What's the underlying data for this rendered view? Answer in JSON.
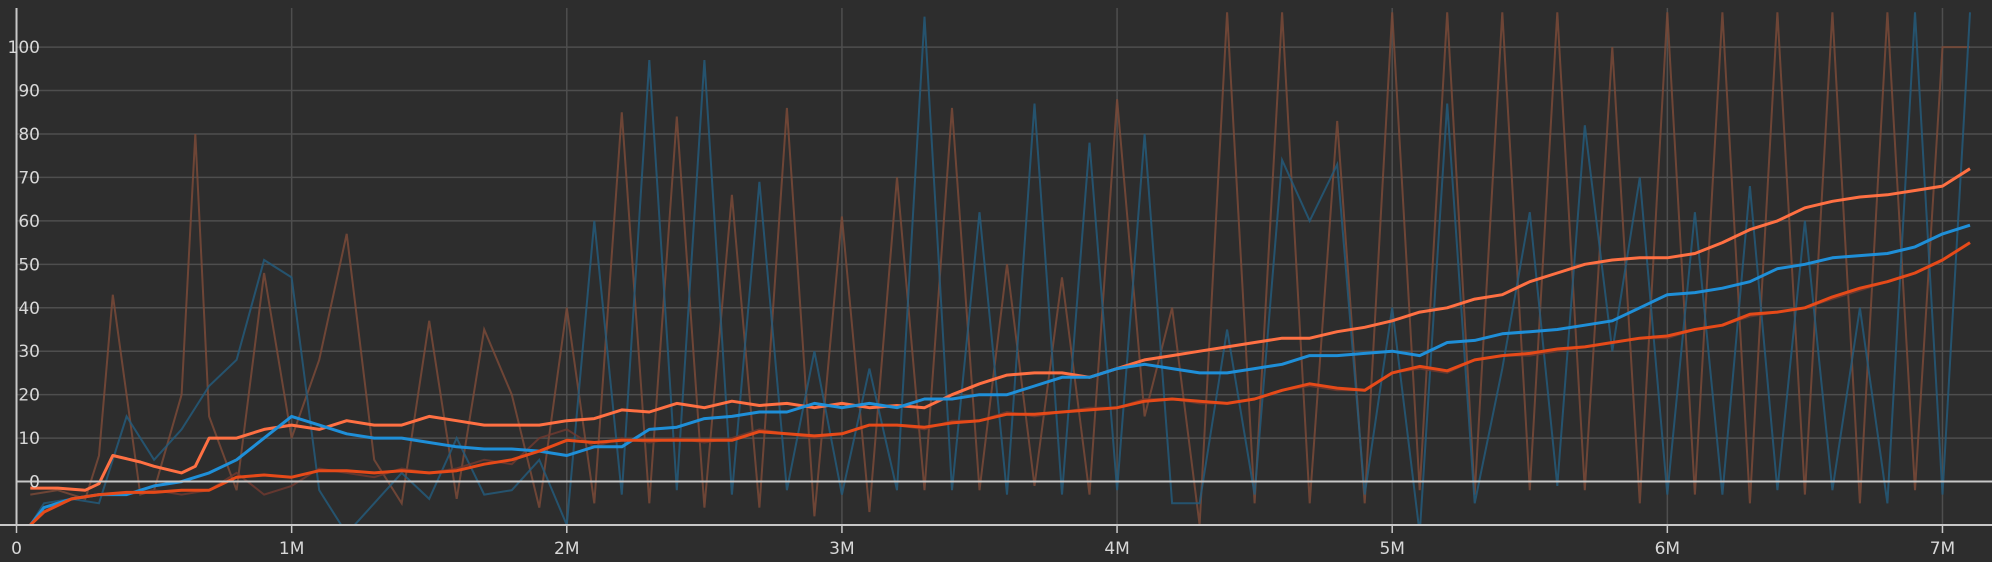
{
  "chart_data": {
    "type": "line",
    "title": "",
    "xlabel": "",
    "ylabel": "",
    "grid": true,
    "legend": "none",
    "xlim": [
      -0.06,
      7.18
    ],
    "ylim": [
      -10,
      109
    ],
    "x_ticks": [
      {
        "value": 0,
        "label": "0"
      },
      {
        "value": 1,
        "label": "1M"
      },
      {
        "value": 2,
        "label": "2M"
      },
      {
        "value": 3,
        "label": "3M"
      },
      {
        "value": 4,
        "label": "4M"
      },
      {
        "value": 5,
        "label": "5M"
      },
      {
        "value": 6,
        "label": "6M"
      },
      {
        "value": 7,
        "label": "7M"
      }
    ],
    "y_ticks": [
      {
        "value": 0,
        "label": "0"
      },
      {
        "value": 10,
        "label": "10"
      },
      {
        "value": 20,
        "label": "20"
      },
      {
        "value": 30,
        "label": "30"
      },
      {
        "value": 40,
        "label": "40"
      },
      {
        "value": 50,
        "label": "50"
      },
      {
        "value": 60,
        "label": "60"
      },
      {
        "value": 70,
        "label": "70"
      },
      {
        "value": 80,
        "label": "80"
      },
      {
        "value": 90,
        "label": "90"
      },
      {
        "value": 100,
        "label": "100"
      }
    ],
    "colors": {
      "background": "#2d2d2d",
      "grid": "#4e4e4e",
      "axis": "#c8c8c8",
      "tick_label": "#d8d8d8"
    },
    "series": [
      {
        "color": "#ff7043",
        "raw_color": "#7a4a38",
        "x": [
          0.05,
          0.15,
          0.25,
          0.3,
          0.35,
          0.45,
          0.5,
          0.6,
          0.65,
          0.7,
          0.8,
          0.9,
          1.0,
          1.1,
          1.2,
          1.3,
          1.4,
          1.5,
          1.6,
          1.7,
          1.8,
          1.9,
          2.0,
          2.1,
          2.2,
          2.3,
          2.4,
          2.5,
          2.6,
          2.7,
          2.8,
          2.9,
          3.0,
          3.1,
          3.2,
          3.3,
          3.4,
          3.5,
          3.6,
          3.7,
          3.8,
          3.9,
          4.0,
          4.1,
          4.2,
          4.3,
          4.4,
          4.5,
          4.6,
          4.7,
          4.8,
          4.9,
          5.0,
          5.1,
          5.2,
          5.3,
          5.4,
          5.5,
          5.6,
          5.7,
          5.8,
          5.9,
          6.0,
          6.1,
          6.2,
          6.3,
          6.4,
          6.5,
          6.6,
          6.7,
          6.8,
          6.9,
          7.0,
          7.1
        ],
        "smoothed": [
          -1.5,
          -1.5,
          -2.0,
          -0.5,
          6.0,
          4.5,
          3.5,
          2.0,
          3.5,
          10.0,
          10.0,
          12.0,
          13.0,
          12.0,
          14.0,
          13.0,
          13.0,
          15.0,
          14.0,
          13.0,
          13.0,
          13.0,
          14.0,
          14.5,
          16.5,
          16.0,
          18.0,
          17.0,
          18.5,
          17.5,
          18.0,
          17.0,
          18.0,
          17.0,
          17.5,
          17.0,
          20.0,
          22.5,
          24.5,
          25.0,
          25.0,
          24.0,
          26.0,
          28.0,
          29.0,
          30.0,
          31.0,
          32.0,
          33.0,
          33.0,
          34.5,
          35.5,
          37.0,
          39.0,
          40.0,
          42.0,
          43.0,
          46.0,
          48.0,
          50.0,
          51.0,
          51.5,
          51.5,
          52.5,
          55.0,
          58.0,
          60.0,
          63.0,
          64.5,
          65.5,
          66.0,
          67.0,
          68.0,
          72.0
        ],
        "raw": [
          -3,
          -2,
          -4,
          6,
          43,
          -3,
          -2,
          20,
          80,
          15,
          -2,
          48,
          10,
          28,
          57,
          5,
          -5,
          37,
          -4,
          35,
          20,
          -6,
          40,
          -5,
          85,
          -5,
          84,
          -6,
          66,
          -6,
          86,
          -8,
          61,
          -7,
          70,
          -2,
          86,
          -2,
          50,
          -1,
          47,
          -3,
          88,
          15,
          40,
          -10,
          108,
          -5,
          108,
          -5,
          83,
          -5,
          108,
          -2,
          108,
          -3,
          108,
          -2,
          108,
          -2,
          100,
          -5,
          108,
          -3,
          108,
          -5,
          108,
          -3,
          108,
          -5,
          108,
          -2,
          100,
          100
        ]
      },
      {
        "color": "#1f8fd8",
        "raw_color": "#255b7a",
        "x": [
          0.05,
          0.1,
          0.2,
          0.3,
          0.4,
          0.5,
          0.6,
          0.7,
          0.8,
          0.9,
          1.0,
          1.1,
          1.2,
          1.3,
          1.4,
          1.5,
          1.6,
          1.7,
          1.8,
          1.9,
          2.0,
          2.1,
          2.2,
          2.3,
          2.4,
          2.5,
          2.6,
          2.7,
          2.8,
          2.9,
          3.0,
          3.1,
          3.2,
          3.3,
          3.4,
          3.5,
          3.6,
          3.7,
          3.8,
          3.9,
          4.0,
          4.1,
          4.2,
          4.3,
          4.4,
          4.5,
          4.6,
          4.7,
          4.8,
          4.9,
          5.0,
          5.1,
          5.2,
          5.3,
          5.4,
          5.5,
          5.6,
          5.7,
          5.8,
          5.9,
          6.0,
          6.1,
          6.2,
          6.3,
          6.4,
          6.5,
          6.6,
          6.7,
          6.8,
          6.9,
          7.0,
          7.1
        ],
        "smoothed": [
          -10.0,
          -6.0,
          -4.0,
          -3.0,
          -3.0,
          -1.0,
          0.0,
          2.0,
          5.0,
          10.0,
          15.0,
          13.0,
          11.0,
          10.0,
          10.0,
          9.0,
          8.0,
          7.5,
          7.5,
          7.0,
          6.0,
          8.0,
          8.0,
          12.0,
          12.5,
          14.5,
          15.0,
          16.0,
          16.0,
          18.0,
          17.0,
          18.0,
          17.0,
          19.0,
          19.0,
          20.0,
          20.0,
          22.0,
          24.0,
          24.0,
          26.0,
          27.0,
          26.0,
          25.0,
          25.0,
          26.0,
          27.0,
          29.0,
          29.0,
          29.5,
          30.0,
          29.0,
          32.0,
          32.5,
          34.0,
          34.5,
          35.0,
          36.0,
          37.0,
          40.0,
          43.0,
          43.5,
          44.5,
          46.0,
          49.0,
          50.0,
          51.5,
          52.0,
          52.5,
          54.0,
          57.0,
          59.0
        ],
        "raw": [
          -10,
          -5,
          -4,
          -5,
          15,
          5,
          12,
          22,
          28,
          51,
          47,
          -2,
          -12,
          -5,
          2,
          -4,
          10,
          -3,
          -2,
          5,
          -10,
          60,
          -3,
          97,
          -2,
          97,
          -3,
          69,
          -2,
          30,
          -3,
          26,
          -2,
          107,
          -2,
          62,
          -3,
          87,
          -3,
          78,
          -2,
          80,
          -5,
          -5,
          35,
          -3,
          74,
          60,
          73,
          -3,
          40,
          -12,
          87,
          -5,
          26,
          62,
          -1,
          82,
          30,
          70,
          -3,
          62,
          -3,
          68,
          -2,
          60,
          -2,
          40,
          -5,
          108,
          -3,
          108
        ]
      },
      {
        "color": "#e64a19",
        "raw_color": "#6f3a30",
        "x": [
          0.05,
          0.1,
          0.2,
          0.3,
          0.4,
          0.5,
          0.6,
          0.7,
          0.8,
          0.9,
          1.0,
          1.1,
          1.2,
          1.3,
          1.4,
          1.5,
          1.6,
          1.7,
          1.8,
          1.9,
          2.0,
          2.1,
          2.2,
          2.3,
          2.4,
          2.5,
          2.6,
          2.7,
          2.8,
          2.9,
          3.0,
          3.1,
          3.2,
          3.3,
          3.4,
          3.5,
          3.6,
          3.7,
          3.8,
          3.9,
          4.0,
          4.1,
          4.2,
          4.3,
          4.4,
          4.5,
          4.6,
          4.7,
          4.8,
          4.9,
          5.0,
          5.1,
          5.2,
          5.3,
          5.4,
          5.5,
          5.6,
          5.7,
          5.8,
          5.9,
          6.0,
          6.1,
          6.2,
          6.3,
          6.4,
          6.5,
          6.6,
          6.7,
          6.8,
          6.9,
          7.0,
          7.1
        ],
        "smoothed": [
          -10.0,
          -7.0,
          -4.0,
          -3.0,
          -2.5,
          -2.5,
          -2.0,
          -2.0,
          1.0,
          1.5,
          1.0,
          2.5,
          2.5,
          2.0,
          2.5,
          2.0,
          2.5,
          4.0,
          5.0,
          7.0,
          9.5,
          9.0,
          9.5,
          9.5,
          9.5,
          9.5,
          9.5,
          11.5,
          11.0,
          10.5,
          11.0,
          13.0,
          13.0,
          12.5,
          13.5,
          14.0,
          15.5,
          15.5,
          16.0,
          16.5,
          17.0,
          18.5,
          19.0,
          18.5,
          18.0,
          19.0,
          21.0,
          22.5,
          21.5,
          21.0,
          25.0,
          26.5,
          25.5,
          28.0,
          29.0,
          29.5,
          30.5,
          31.0,
          32.0,
          33.0,
          33.5,
          35.0,
          36.0,
          38.5,
          39.0,
          40.0,
          42.5,
          44.5,
          46.0,
          48.0,
          51.0,
          55.0
        ],
        "raw": [
          -10,
          -6,
          -4,
          -3,
          -3,
          -2,
          -3,
          -2,
          2,
          -3,
          -1,
          3,
          2,
          1,
          3,
          2,
          3,
          5,
          4,
          10,
          12,
          8,
          10,
          9,
          10,
          9,
          10,
          12,
          11,
          10,
          11,
          13,
          13,
          12,
          14,
          14,
          16,
          15,
          16,
          17,
          17,
          19,
          19,
          18,
          18,
          19,
          21,
          22,
          21,
          21,
          25,
          26,
          25,
          28,
          29,
          29,
          30,
          31,
          32,
          33,
          33,
          35,
          36,
          38,
          39,
          40,
          42,
          44,
          46,
          48,
          51,
          55
        ]
      }
    ]
  }
}
